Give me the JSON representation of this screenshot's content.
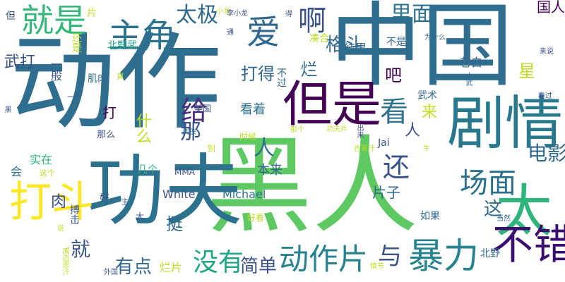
{
  "wordcloud": {
    "background": "#ffffff",
    "words": [
      {
        "text": "动作",
        "color": "#2f6e8e"
      },
      {
        "text": "黑人",
        "color": "#5ec962"
      },
      {
        "text": "中国",
        "color": "#2f6e8e"
      },
      {
        "text": "功夫",
        "color": "#2c728e"
      },
      {
        "text": "剧情",
        "color": "#2a788e"
      },
      {
        "text": "但是",
        "color": "#440154"
      },
      {
        "text": "太",
        "color": "#2fb47c"
      },
      {
        "text": "打斗",
        "color": "#fde725"
      },
      {
        "text": "主角",
        "color": "#2c728e"
      },
      {
        "text": "暴力",
        "color": "#26828e"
      },
      {
        "text": "不错",
        "color": "#3b0f70"
      },
      {
        "text": "就是",
        "color": "#35b779"
      },
      {
        "text": "动作片",
        "color": "#26828e"
      },
      {
        "text": "场面",
        "color": "#2d708e"
      },
      {
        "text": "还",
        "color": "#3b528b"
      },
      {
        "text": "看",
        "color": "#2c728e"
      },
      {
        "text": "没有",
        "color": "#21a685"
      },
      {
        "text": "爱",
        "color": "#31688e"
      },
      {
        "text": "啊",
        "color": "#3b528b"
      },
      {
        "text": "给",
        "color": "#472d7b"
      },
      {
        "text": "那",
        "color": "#3b528b"
      },
      {
        "text": "太极",
        "color": "#31688e"
      },
      {
        "text": "里面",
        "color": "#2c728e"
      },
      {
        "text": "格斗",
        "color": "#31688e"
      },
      {
        "text": "人",
        "color": "#2c728e"
      },
      {
        "text": "与",
        "color": "#3b528b"
      },
      {
        "text": "有点",
        "color": "#31688e"
      },
      {
        "text": "简单",
        "color": "#3b528b"
      },
      {
        "text": "电影",
        "color": "#31688e"
      },
      {
        "text": "这",
        "color": "#31688e"
      },
      {
        "text": "就",
        "color": "#3b528b"
      },
      {
        "text": "挺",
        "color": "#31688e"
      },
      {
        "text": "吧",
        "color": "#440154"
      },
      {
        "text": "武打",
        "color": "#3b528b"
      },
      {
        "text": "打得",
        "color": "#31688e"
      },
      {
        "text": "烂",
        "color": "#31688e"
      },
      {
        "text": "星",
        "color": "#bddf26"
      },
      {
        "text": "片子",
        "color": "#31688e"
      },
      {
        "text": "来",
        "color": "#bddf26"
      },
      {
        "text": "看着",
        "color": "#2c728e"
      },
      {
        "text": "人",
        "color": "#3b528b"
      },
      {
        "text": "打",
        "color": "#440154"
      },
      {
        "text": "什么",
        "color": "#bddf26"
      },
      {
        "text": "本来",
        "color": "#31688e"
      },
      {
        "text": "肉",
        "color": "#3b528b"
      },
      {
        "text": "White",
        "color": "#3b528b"
      },
      {
        "text": "Michael",
        "color": "#2c728e"
      },
      {
        "text": "实在",
        "color": "#2fb47c"
      },
      {
        "text": "会",
        "color": "#2c728e"
      },
      {
        "text": "一般",
        "color": "#3b528b"
      },
      {
        "text": "结果",
        "color": "#31688e"
      },
      {
        "text": "不是",
        "color": "#31688e"
      },
      {
        "text": "烂片",
        "color": "#bddf26"
      },
      {
        "text": "凑合",
        "color": "#bddf26"
      },
      {
        "text": "苍白",
        "color": "#31688e"
      },
      {
        "text": "北野武",
        "color": "#21a685"
      },
      {
        "text": "不过",
        "color": "#31688e"
      },
      {
        "text": "如果",
        "color": "#31688e"
      },
      {
        "text": "国人",
        "color": "#440154"
      },
      {
        "text": "片",
        "color": "#bddf26"
      },
      {
        "text": "Jai",
        "color": "#3b528b"
      },
      {
        "text": "MMA",
        "color": "#3b528b"
      },
      {
        "text": "肌肉",
        "color": "#31688e"
      },
      {
        "text": "搏击",
        "color": "#3b528b"
      },
      {
        "text": "好",
        "color": "#3b528b"
      },
      {
        "text": "北野",
        "color": "#31688e"
      },
      {
        "text": "几个",
        "color": "#2fb47c"
      },
      {
        "text": "这个",
        "color": "#bddf26"
      },
      {
        "text": "美国",
        "color": "#3b528b"
      },
      {
        "text": "武术",
        "color": "#31688e"
      },
      {
        "text": "还是",
        "color": "#bddf26"
      },
      {
        "text": "但",
        "color": "#3b528b"
      },
      {
        "text": "小龙",
        "color": "#bddf26"
      },
      {
        "text": "得",
        "color": "#3b528b"
      },
      {
        "text": "为什么",
        "color": "#31688e"
      },
      {
        "text": "来说",
        "color": "#3b528b"
      },
      {
        "text": "看过",
        "color": "#3b528b"
      },
      {
        "text": "人武",
        "color": "#31688e"
      },
      {
        "text": "真",
        "color": "#bddf26"
      },
      {
        "text": "一个",
        "color": "#3b528b"
      },
      {
        "text": "那么",
        "color": "#3b528b"
      },
      {
        "text": "时候",
        "color": "#bddf26"
      },
      {
        "text": "那个",
        "color": "#bddf26"
      },
      {
        "text": "功夫片",
        "color": "#bddf26"
      },
      {
        "text": "出来",
        "color": "#3b528b"
      },
      {
        "text": "武侠",
        "color": "#2c728e"
      },
      {
        "text": "到",
        "color": "#bddf26"
      },
      {
        "text": "李小龙",
        "color": "#3b528b"
      },
      {
        "text": "通",
        "color": "#3b528b"
      },
      {
        "text": "吉思汗",
        "color": "#bddf26"
      },
      {
        "text": "牛",
        "color": "#bddf26"
      },
      {
        "text": "黑",
        "color": "#3b528b"
      },
      {
        "text": "主",
        "color": "#3b528b"
      },
      {
        "text": "大",
        "color": "#3b528b"
      },
      {
        "text": "好看",
        "color": "#bddf26"
      },
      {
        "text": "当然",
        "color": "#31688e"
      },
      {
        "text": "外国",
        "color": "#3b528b"
      },
      {
        "text": "说",
        "color": "#bddf26"
      },
      {
        "text": "成吉思汗",
        "color": "#bddf26"
      },
      {
        "text": "情节",
        "color": "#bddf26"
      }
    ]
  }
}
